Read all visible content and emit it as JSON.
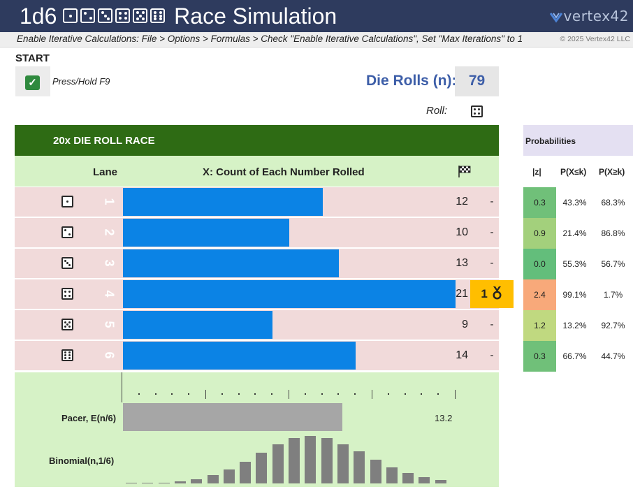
{
  "header": {
    "title_prefix": "1d6",
    "title_suffix": "Race Simulation",
    "logo": "vertex42",
    "instructions": "Enable Iterative Calculations: File > Options > Formulas > Check \"Enable Iterative Calculations\", Set \"Max Iterations\" to 1",
    "copyright": "© 2025 Vertex42 LLC"
  },
  "controls": {
    "start_label": "START",
    "checkbox_checked": true,
    "press_label": "Press/Hold F9",
    "rolls_label": "Die Rolls (n):",
    "rolls_value": "79",
    "roll_label": "Roll:",
    "current_roll": 4
  },
  "race": {
    "title": "20x DIE ROLL RACE",
    "lane_header": "Lane",
    "count_header": "X: Count of Each Number Rolled",
    "flag_icon": "checkered-flag-icon",
    "axis_max": 20,
    "lanes": [
      {
        "lane": "1",
        "face": 1,
        "count": 12,
        "place": "-"
      },
      {
        "lane": "2",
        "face": 2,
        "count": 10,
        "place": "-"
      },
      {
        "lane": "3",
        "face": 3,
        "count": 13,
        "place": "-"
      },
      {
        "lane": "4",
        "face": 4,
        "count": 21,
        "place": "1",
        "medal_icon": "medal-icon"
      },
      {
        "lane": "5",
        "face": 5,
        "count": 9,
        "place": "-"
      },
      {
        "lane": "6",
        "face": 6,
        "count": 14,
        "place": "-"
      }
    ],
    "pacer_label": "Pacer, E(n/6)",
    "pacer_value": "13.2",
    "binomial_label": "Binomial(n,1/6)",
    "binomial_probabilities": [
      0.0003,
      0.001,
      0.0025,
      0.0055,
      0.011,
      0.02,
      0.034,
      0.053,
      0.075,
      0.096,
      0.111,
      0.116,
      0.111,
      0.096,
      0.078,
      0.058,
      0.04,
      0.025,
      0.015,
      0.009
    ]
  },
  "probabilities": {
    "title": "Probabilities",
    "headers": [
      "|z|",
      "P(X≤k)",
      "P(X≥k)"
    ],
    "rows": [
      {
        "z": "0.3",
        "le": "43.3%",
        "ge": "68.3%",
        "color": "#70c079"
      },
      {
        "z": "0.9",
        "le": "21.4%",
        "ge": "86.8%",
        "color": "#a3d07c"
      },
      {
        "z": "0.0",
        "le": "55.3%",
        "ge": "56.7%",
        "color": "#63be7b"
      },
      {
        "z": "2.4",
        "le": "99.1%",
        "ge": "1.7%",
        "color": "#f8a97a"
      },
      {
        "z": "1.2",
        "le": "13.2%",
        "ge": "92.7%",
        "color": "#c0d980"
      },
      {
        "z": "0.3",
        "le": "66.7%",
        "ge": "44.7%",
        "color": "#70c079"
      }
    ]
  },
  "colors": {
    "title_bar": "#2e3b5e",
    "race_header": "#2e6b14",
    "lane_bg": "#f1dada",
    "bar": "#0b83e5",
    "winner": "#ffbe00",
    "panel_green": "#d6f2c6"
  }
}
